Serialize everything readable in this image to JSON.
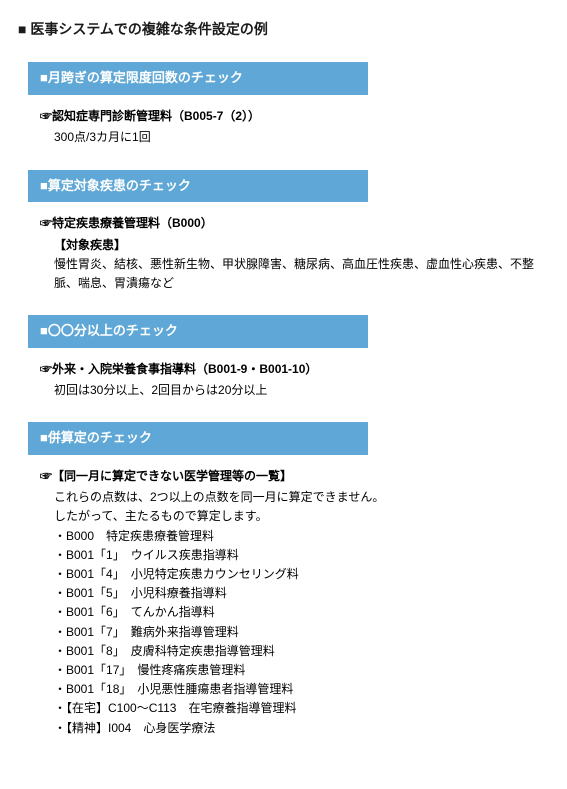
{
  "pageTitle": "■ 医事システムでの複雑な条件設定の例",
  "ribbonBg": "#5ea7d6",
  "ribbonText": "#ffffff",
  "sections": [
    {
      "ribbon": "■月跨ぎの算定限度回数のチェック",
      "lead": "☞認知症専門診断管理料（B005-7（2））",
      "subs": [
        "300点/3カ月に1回"
      ],
      "list": []
    },
    {
      "ribbon": "■算定対象疾患のチェック",
      "lead": "☞特定疾患療養管理料（B000）",
      "subs": [
        "【対象疾患】",
        "慢性胃炎、結核、悪性新生物、甲状腺障害、糖尿病、高血圧性疾患、虚血性心疾患、不整脈、喘息、胃潰瘍など"
      ],
      "list": []
    },
    {
      "ribbon": "■〇〇分以上のチェック",
      "lead": "☞外来・入院栄養食事指導料（B001-9・B001-10）",
      "subs": [
        "初回は30分以上、2回目からは20分以上"
      ],
      "list": []
    },
    {
      "ribbon": "■併算定のチェック",
      "lead": "☞【同一月に算定できない医学管理等の一覧】",
      "subs": [
        "これらの点数は、2つ以上の点数を同一月に算定できません。",
        "したがって、主たるもので算定します。"
      ],
      "list": [
        "・B000　特定疾患療養管理料",
        "・B001「1」　ウイルス疾患指導料",
        "・B001「4」　小児特定疾患カウンセリング料",
        "・B001「5」　小児科療養指導料",
        "・B001「6」　てんかん指導料",
        "・B001「7」　難病外来指導管理料",
        "・B001「8」　皮膚科特定疾患指導管理料",
        "・B001「17」　慢性疼痛疾患管理料",
        "・B001「18」　小児悪性腫瘍患者指導管理料",
        "・【在宅】C100～C113　在宅療養指導管理料",
        "・【精神】I004　心身医学療法"
      ]
    }
  ]
}
